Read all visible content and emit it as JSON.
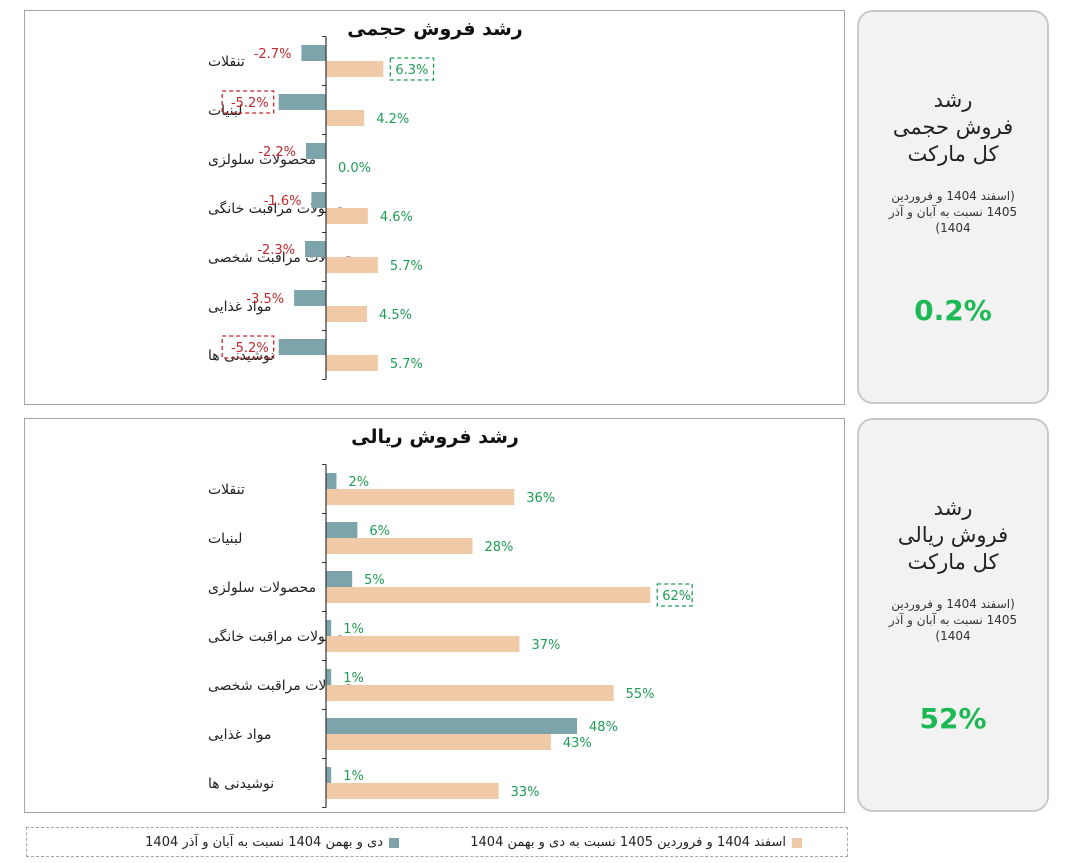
{
  "colors": {
    "prior": "#7da3ab",
    "current": "#f0caa7",
    "positive": "#1f9d55",
    "negative": "#c0282d",
    "card_value": "#1db954"
  },
  "legend": {
    "current_label": "اسفند 1404 و فروردین 1405 نسبت به دی و بهمن 1404",
    "prior_label": "دی و بهمن 1404 نسبت به آبان و آذر 1404"
  },
  "cards": [
    {
      "title_lines": [
        "رشد",
        "فروش حجمی",
        "کل مارکت"
      ],
      "period": "(اسفند 1404 و فروردین 1405 نسبت به آبان و آذر 1404)",
      "value": "0.2%"
    },
    {
      "title_lines": [
        "رشد",
        "فروش ریالی",
        "کل مارکت"
      ],
      "period": "(اسفند 1404 و فروردین 1405 نسبت به آبان و آذر 1404)",
      "value": "52%"
    }
  ],
  "chart_data": [
    {
      "type": "bar",
      "orientation": "horizontal",
      "title": "رشد فروش حجمی",
      "unit": "%",
      "decimals": 1,
      "categories": [
        "تنقلات",
        "لبنیات",
        "محصولات سلولزی",
        "محصولات مراقبت خانگی",
        "محصولات مراقبت شخصی",
        "مواد غذایی",
        "نوشیدنی ها"
      ],
      "series": [
        {
          "name": "دی و بهمن 1404 نسبت به آبان و آذر 1404",
          "values": [
            -2.7,
            -5.2,
            -2.2,
            -1.6,
            -2.3,
            -3.5,
            -5.2
          ]
        },
        {
          "name": "اسفند 1404 و فروردین 1405 نسبت به دی و بهمن 1404",
          "values": [
            6.3,
            4.2,
            0.0,
            4.6,
            5.7,
            4.5,
            5.7
          ]
        }
      ],
      "highlights": [
        {
          "series": 1,
          "index": 0
        },
        {
          "series": 0,
          "index": 1
        },
        {
          "series": 0,
          "index": 6
        }
      ]
    },
    {
      "type": "bar",
      "orientation": "horizontal",
      "title": "رشد فروش ریالی",
      "unit": "%",
      "decimals": 0,
      "categories": [
        "تنقلات",
        "لبنیات",
        "محصولات سلولزی",
        "محصولات مراقبت خانگی",
        "محصولات مراقبت شخصی",
        "مواد غذایی",
        "نوشیدنی ها"
      ],
      "series": [
        {
          "name": "دی و بهمن 1404 نسبت به آبان و آذر 1404",
          "values": [
            2,
            6,
            5,
            1,
            1,
            48,
            1
          ]
        },
        {
          "name": "اسفند 1404 و فروردین 1405 نسبت به دی و بهمن 1404",
          "values": [
            36,
            28,
            62,
            37,
            55,
            43,
            33
          ]
        }
      ],
      "highlights": [
        {
          "series": 1,
          "index": 2
        }
      ]
    }
  ]
}
